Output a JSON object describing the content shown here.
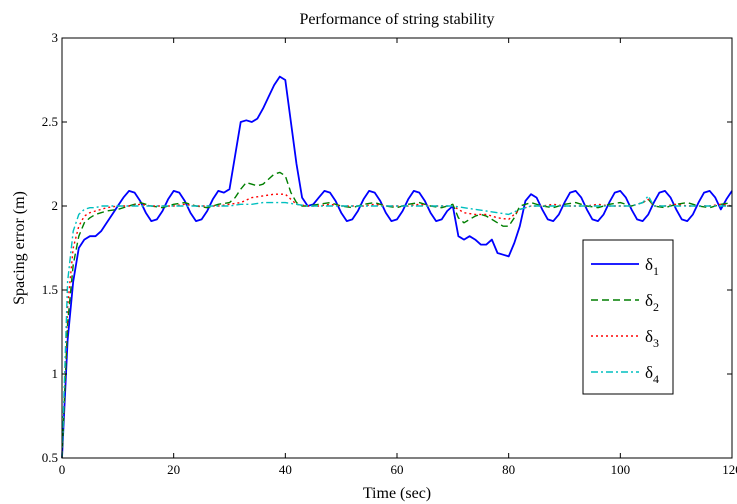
{
  "chart_data": {
    "type": "line",
    "title": "Performance of string stability",
    "xlabel": "Time (sec)",
    "ylabel": "Spacing error (m)",
    "xlim": [
      0,
      120
    ],
    "ylim": [
      0.5,
      3
    ],
    "xticks": [
      0,
      20,
      40,
      60,
      80,
      100,
      120
    ],
    "yticks": [
      0.5,
      1,
      1.5,
      2,
      2.5,
      3
    ],
    "xtick_labels": [
      "0",
      "20",
      "40",
      "60",
      "80",
      "100",
      "120"
    ],
    "ytick_labels": [
      "0.5",
      "1",
      "1.5",
      "2",
      "2.5",
      "3"
    ],
    "grid": false,
    "legend_position": "right",
    "series": [
      {
        "name": "δ1",
        "name_base": "δ",
        "name_sub": "1",
        "color": "#0000ff",
        "dash": "solid",
        "x": [
          0,
          1,
          2,
          3,
          4,
          5,
          6,
          7,
          8,
          9,
          10,
          11,
          12,
          13,
          14,
          15,
          16,
          17,
          18,
          19,
          20,
          21,
          22,
          23,
          24,
          25,
          26,
          27,
          28,
          29,
          30,
          31,
          32,
          33,
          34,
          35,
          36,
          37,
          38,
          39,
          40,
          41,
          42,
          43,
          44,
          45,
          46,
          47,
          48,
          49,
          50,
          51,
          52,
          53,
          54,
          55,
          56,
          57,
          58,
          59,
          60,
          61,
          62,
          63,
          64,
          65,
          66,
          67,
          68,
          69,
          70,
          71,
          72,
          73,
          74,
          75,
          76,
          77,
          78,
          79,
          80,
          81,
          82,
          83,
          84,
          85,
          86,
          87,
          88,
          89,
          90,
          91,
          92,
          93,
          94,
          95,
          96,
          97,
          98,
          99,
          100,
          101,
          102,
          103,
          104,
          105,
          106,
          107,
          108,
          109,
          110,
          111,
          112,
          113,
          114,
          115,
          116,
          117,
          118,
          119,
          120
        ],
        "y": [
          0.5,
          1.2,
          1.55,
          1.75,
          1.8,
          1.82,
          1.82,
          1.85,
          1.9,
          1.95,
          2.0,
          2.05,
          2.09,
          2.08,
          2.03,
          1.96,
          1.91,
          1.92,
          1.97,
          2.04,
          2.09,
          2.08,
          2.03,
          1.96,
          1.91,
          1.92,
          1.97,
          2.04,
          2.09,
          2.08,
          2.1,
          2.3,
          2.5,
          2.51,
          2.5,
          2.52,
          2.58,
          2.65,
          2.72,
          2.77,
          2.75,
          2.5,
          2.25,
          2.05,
          2.0,
          2.01,
          2.05,
          2.09,
          2.08,
          2.03,
          1.96,
          1.91,
          1.92,
          1.97,
          2.04,
          2.09,
          2.08,
          2.03,
          1.96,
          1.91,
          1.92,
          1.97,
          2.04,
          2.09,
          2.08,
          2.03,
          1.96,
          1.91,
          1.92,
          1.97,
          2.0,
          1.82,
          1.8,
          1.82,
          1.8,
          1.77,
          1.77,
          1.8,
          1.72,
          1.71,
          1.7,
          1.78,
          1.88,
          2.03,
          2.07,
          2.05,
          1.98,
          1.92,
          1.91,
          1.95,
          2.02,
          2.08,
          2.09,
          2.05,
          1.98,
          1.92,
          1.91,
          1.95,
          2.02,
          2.08,
          2.09,
          2.05,
          1.98,
          1.92,
          1.91,
          1.95,
          2.02,
          2.08,
          2.09,
          2.05,
          1.98,
          1.92,
          1.91,
          1.95,
          2.02,
          2.08,
          2.09,
          2.05,
          1.98,
          2.04,
          2.09
        ]
      },
      {
        "name": "δ2",
        "name_base": "δ",
        "name_sub": "2",
        "color": "#007f00",
        "dash": "dashed",
        "x": [
          0,
          1,
          2,
          3,
          4,
          5,
          6,
          7,
          8,
          10,
          12,
          14,
          16,
          18,
          20,
          22,
          24,
          26,
          28,
          30,
          31,
          32,
          33,
          34,
          35,
          36,
          37,
          38,
          39,
          40,
          41,
          42,
          43,
          44,
          46,
          48,
          50,
          52,
          54,
          56,
          58,
          60,
          62,
          64,
          66,
          68,
          70,
          71,
          72,
          73,
          74,
          75,
          76,
          77,
          78,
          79,
          80,
          81,
          82,
          84,
          86,
          88,
          90,
          92,
          94,
          96,
          98,
          100,
          102,
          104,
          105,
          106,
          108,
          110,
          112,
          114,
          116,
          118,
          120
        ],
        "y": [
          0.5,
          1.3,
          1.65,
          1.82,
          1.9,
          1.93,
          1.95,
          1.96,
          1.97,
          1.98,
          2.0,
          2.02,
          2.0,
          1.99,
          2.01,
          2.02,
          2.0,
          1.99,
          2.01,
          2.02,
          2.05,
          2.1,
          2.14,
          2.13,
          2.12,
          2.13,
          2.16,
          2.19,
          2.2,
          2.18,
          2.08,
          2.02,
          2.0,
          2.0,
          2.01,
          2.02,
          2.0,
          1.99,
          2.01,
          2.02,
          2.0,
          1.99,
          2.01,
          2.02,
          2.0,
          1.99,
          2.01,
          1.93,
          1.9,
          1.92,
          1.94,
          1.95,
          1.94,
          1.92,
          1.9,
          1.88,
          1.88,
          1.93,
          2.0,
          2.02,
          2.0,
          1.99,
          2.01,
          2.02,
          2.0,
          1.99,
          2.01,
          2.02,
          2.0,
          2.02,
          2.04,
          2.0,
          1.99,
          2.01,
          2.02,
          2.0,
          1.99,
          2.01,
          2.02
        ]
      },
      {
        "name": "δ3",
        "name_base": "δ",
        "name_sub": "3",
        "color": "#ff0000",
        "dash": "dotted",
        "x": [
          0,
          1,
          2,
          3,
          4,
          5,
          6,
          7,
          8,
          10,
          12,
          14,
          16,
          18,
          20,
          22,
          24,
          26,
          28,
          30,
          32,
          34,
          36,
          38,
          40,
          41,
          42,
          44,
          46,
          48,
          50,
          52,
          54,
          56,
          58,
          60,
          62,
          64,
          66,
          68,
          70,
          72,
          74,
          76,
          78,
          80,
          82,
          84,
          86,
          88,
          90,
          92,
          94,
          96,
          98,
          100,
          102,
          104,
          105,
          106,
          108,
          110,
          112,
          114,
          116,
          118,
          120
        ],
        "y": [
          0.5,
          1.4,
          1.75,
          1.88,
          1.94,
          1.96,
          1.97,
          1.98,
          1.99,
          2.0,
          2.0,
          2.01,
          2.0,
          2.0,
          2.0,
          2.01,
          2.0,
          2.0,
          2.0,
          2.01,
          2.02,
          2.05,
          2.06,
          2.07,
          2.07,
          2.04,
          2.01,
          2.0,
          2.0,
          2.01,
          2.0,
          2.0,
          2.0,
          2.01,
          2.0,
          2.0,
          2.0,
          2.01,
          2.0,
          2.0,
          2.0,
          1.96,
          1.95,
          1.95,
          1.93,
          1.92,
          1.98,
          2.0,
          2.0,
          2.01,
          2.0,
          2.0,
          2.0,
          2.01,
          2.0,
          2.0,
          2.0,
          2.02,
          2.04,
          2.0,
          2.0,
          2.01,
          2.0,
          2.0,
          2.0,
          2.01,
          2.0
        ]
      },
      {
        "name": "δ4",
        "name_base": "δ",
        "name_sub": "4",
        "color": "#00bfbf",
        "dash": "dashdot",
        "x": [
          0,
          1,
          2,
          3,
          4,
          5,
          6,
          7,
          8,
          10,
          12,
          14,
          16,
          18,
          20,
          22,
          24,
          26,
          28,
          30,
          32,
          34,
          36,
          38,
          40,
          42,
          44,
          46,
          48,
          50,
          52,
          54,
          56,
          58,
          60,
          62,
          64,
          66,
          68,
          70,
          72,
          74,
          76,
          78,
          80,
          82,
          84,
          86,
          88,
          90,
          92,
          94,
          96,
          98,
          100,
          102,
          104,
          105,
          106,
          108,
          110,
          112,
          114,
          116,
          118,
          120
        ],
        "y": [
          0.5,
          1.55,
          1.85,
          1.95,
          1.98,
          1.99,
          1.99,
          2.0,
          2.0,
          2.0,
          2.0,
          2.0,
          2.0,
          2.0,
          2.0,
          2.0,
          2.0,
          2.0,
          2.0,
          2.0,
          2.01,
          2.01,
          2.02,
          2.02,
          2.02,
          2.01,
          2.0,
          2.0,
          2.0,
          2.0,
          2.0,
          2.0,
          2.0,
          2.0,
          2.0,
          2.0,
          2.0,
          2.0,
          2.0,
          2.0,
          1.99,
          1.98,
          1.97,
          1.96,
          1.95,
          1.98,
          2.0,
          2.0,
          2.0,
          2.0,
          2.0,
          2.0,
          2.0,
          2.0,
          2.0,
          2.0,
          2.02,
          2.06,
          2.0,
          2.0,
          2.0,
          2.0,
          2.0,
          2.0,
          2.0,
          2.0
        ]
      }
    ]
  }
}
